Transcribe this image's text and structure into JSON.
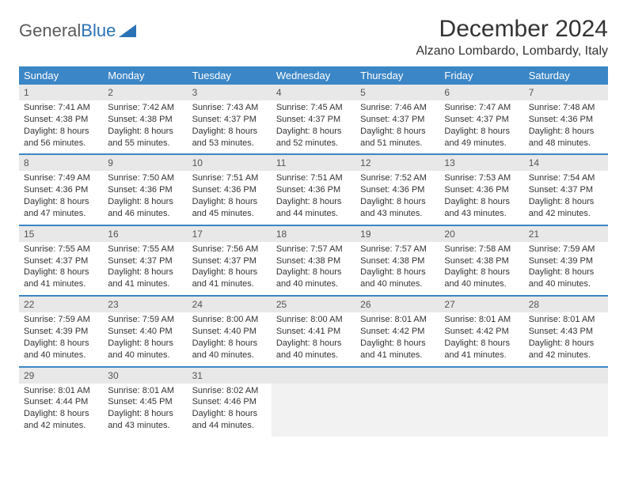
{
  "logo": {
    "text1": "General",
    "text2": "Blue"
  },
  "title": "December 2024",
  "location": "Alzano Lombardo, Lombardy, Italy",
  "colors": {
    "header_bg": "#3b86c6",
    "header_text": "#ffffff",
    "daynum_bg": "#e8e8e8",
    "row_border": "#3b86c6",
    "body_text": "#333333"
  },
  "day_names": [
    "Sunday",
    "Monday",
    "Tuesday",
    "Wednesday",
    "Thursday",
    "Friday",
    "Saturday"
  ],
  "weeks": [
    [
      {
        "n": "1",
        "sr": "Sunrise: 7:41 AM",
        "ss": "Sunset: 4:38 PM",
        "dl": "Daylight: 8 hours and 56 minutes."
      },
      {
        "n": "2",
        "sr": "Sunrise: 7:42 AM",
        "ss": "Sunset: 4:38 PM",
        "dl": "Daylight: 8 hours and 55 minutes."
      },
      {
        "n": "3",
        "sr": "Sunrise: 7:43 AM",
        "ss": "Sunset: 4:37 PM",
        "dl": "Daylight: 8 hours and 53 minutes."
      },
      {
        "n": "4",
        "sr": "Sunrise: 7:45 AM",
        "ss": "Sunset: 4:37 PM",
        "dl": "Daylight: 8 hours and 52 minutes."
      },
      {
        "n": "5",
        "sr": "Sunrise: 7:46 AM",
        "ss": "Sunset: 4:37 PM",
        "dl": "Daylight: 8 hours and 51 minutes."
      },
      {
        "n": "6",
        "sr": "Sunrise: 7:47 AM",
        "ss": "Sunset: 4:37 PM",
        "dl": "Daylight: 8 hours and 49 minutes."
      },
      {
        "n": "7",
        "sr": "Sunrise: 7:48 AM",
        "ss": "Sunset: 4:36 PM",
        "dl": "Daylight: 8 hours and 48 minutes."
      }
    ],
    [
      {
        "n": "8",
        "sr": "Sunrise: 7:49 AM",
        "ss": "Sunset: 4:36 PM",
        "dl": "Daylight: 8 hours and 47 minutes."
      },
      {
        "n": "9",
        "sr": "Sunrise: 7:50 AM",
        "ss": "Sunset: 4:36 PM",
        "dl": "Daylight: 8 hours and 46 minutes."
      },
      {
        "n": "10",
        "sr": "Sunrise: 7:51 AM",
        "ss": "Sunset: 4:36 PM",
        "dl": "Daylight: 8 hours and 45 minutes."
      },
      {
        "n": "11",
        "sr": "Sunrise: 7:51 AM",
        "ss": "Sunset: 4:36 PM",
        "dl": "Daylight: 8 hours and 44 minutes."
      },
      {
        "n": "12",
        "sr": "Sunrise: 7:52 AM",
        "ss": "Sunset: 4:36 PM",
        "dl": "Daylight: 8 hours and 43 minutes."
      },
      {
        "n": "13",
        "sr": "Sunrise: 7:53 AM",
        "ss": "Sunset: 4:36 PM",
        "dl": "Daylight: 8 hours and 43 minutes."
      },
      {
        "n": "14",
        "sr": "Sunrise: 7:54 AM",
        "ss": "Sunset: 4:37 PM",
        "dl": "Daylight: 8 hours and 42 minutes."
      }
    ],
    [
      {
        "n": "15",
        "sr": "Sunrise: 7:55 AM",
        "ss": "Sunset: 4:37 PM",
        "dl": "Daylight: 8 hours and 41 minutes."
      },
      {
        "n": "16",
        "sr": "Sunrise: 7:55 AM",
        "ss": "Sunset: 4:37 PM",
        "dl": "Daylight: 8 hours and 41 minutes."
      },
      {
        "n": "17",
        "sr": "Sunrise: 7:56 AM",
        "ss": "Sunset: 4:37 PM",
        "dl": "Daylight: 8 hours and 41 minutes."
      },
      {
        "n": "18",
        "sr": "Sunrise: 7:57 AM",
        "ss": "Sunset: 4:38 PM",
        "dl": "Daylight: 8 hours and 40 minutes."
      },
      {
        "n": "19",
        "sr": "Sunrise: 7:57 AM",
        "ss": "Sunset: 4:38 PM",
        "dl": "Daylight: 8 hours and 40 minutes."
      },
      {
        "n": "20",
        "sr": "Sunrise: 7:58 AM",
        "ss": "Sunset: 4:38 PM",
        "dl": "Daylight: 8 hours and 40 minutes."
      },
      {
        "n": "21",
        "sr": "Sunrise: 7:59 AM",
        "ss": "Sunset: 4:39 PM",
        "dl": "Daylight: 8 hours and 40 minutes."
      }
    ],
    [
      {
        "n": "22",
        "sr": "Sunrise: 7:59 AM",
        "ss": "Sunset: 4:39 PM",
        "dl": "Daylight: 8 hours and 40 minutes."
      },
      {
        "n": "23",
        "sr": "Sunrise: 7:59 AM",
        "ss": "Sunset: 4:40 PM",
        "dl": "Daylight: 8 hours and 40 minutes."
      },
      {
        "n": "24",
        "sr": "Sunrise: 8:00 AM",
        "ss": "Sunset: 4:40 PM",
        "dl": "Daylight: 8 hours and 40 minutes."
      },
      {
        "n": "25",
        "sr": "Sunrise: 8:00 AM",
        "ss": "Sunset: 4:41 PM",
        "dl": "Daylight: 8 hours and 40 minutes."
      },
      {
        "n": "26",
        "sr": "Sunrise: 8:01 AM",
        "ss": "Sunset: 4:42 PM",
        "dl": "Daylight: 8 hours and 41 minutes."
      },
      {
        "n": "27",
        "sr": "Sunrise: 8:01 AM",
        "ss": "Sunset: 4:42 PM",
        "dl": "Daylight: 8 hours and 41 minutes."
      },
      {
        "n": "28",
        "sr": "Sunrise: 8:01 AM",
        "ss": "Sunset: 4:43 PM",
        "dl": "Daylight: 8 hours and 42 minutes."
      }
    ],
    [
      {
        "n": "29",
        "sr": "Sunrise: 8:01 AM",
        "ss": "Sunset: 4:44 PM",
        "dl": "Daylight: 8 hours and 42 minutes."
      },
      {
        "n": "30",
        "sr": "Sunrise: 8:01 AM",
        "ss": "Sunset: 4:45 PM",
        "dl": "Daylight: 8 hours and 43 minutes."
      },
      {
        "n": "31",
        "sr": "Sunrise: 8:02 AM",
        "ss": "Sunset: 4:46 PM",
        "dl": "Daylight: 8 hours and 44 minutes."
      },
      null,
      null,
      null,
      null
    ]
  ]
}
